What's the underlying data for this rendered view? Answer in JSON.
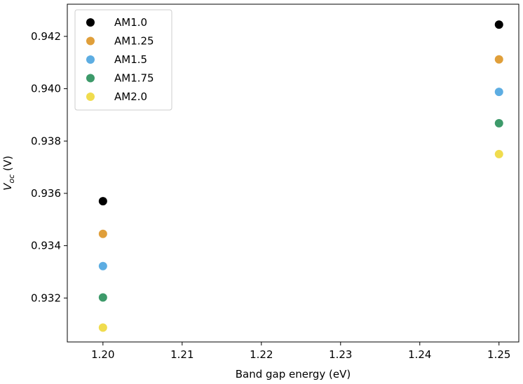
{
  "chart_data": {
    "type": "scatter",
    "xlabel": "Band gap energy (eV)",
    "ylabel": {
      "main": "V",
      "subscript": "oc",
      "unit": " (V)"
    },
    "xlim": [
      1.1955,
      1.2525
    ],
    "ylim": [
      0.93032,
      0.94323
    ],
    "xticks": [
      1.2,
      1.21,
      1.22,
      1.23,
      1.24,
      1.25
    ],
    "xtick_labels": [
      "1.20",
      "1.21",
      "1.22",
      "1.23",
      "1.24",
      "1.25"
    ],
    "yticks": [
      0.932,
      0.934,
      0.936,
      0.938,
      0.94,
      0.942
    ],
    "ytick_labels": [
      "0.932",
      "0.934",
      "0.936",
      "0.938",
      "0.940",
      "0.942"
    ],
    "grid": false,
    "legend_position": "top-left",
    "series": [
      {
        "name": "AM1.0",
        "color": "#000000",
        "x": [
          1.2,
          1.25
        ],
        "y": [
          0.9357,
          0.94245
        ]
      },
      {
        "name": "AM1.25",
        "color": "#E09F3A",
        "x": [
          1.2,
          1.25
        ],
        "y": [
          0.93445,
          0.94112
        ]
      },
      {
        "name": "AM1.5",
        "color": "#5DADE2",
        "x": [
          1.2,
          1.25
        ],
        "y": [
          0.93322,
          0.93988
        ]
      },
      {
        "name": "AM1.75",
        "color": "#3D9A6A",
        "x": [
          1.2,
          1.25
        ],
        "y": [
          0.93202,
          0.93868
        ]
      },
      {
        "name": "AM2.0",
        "color": "#F0DC4E",
        "x": [
          1.2,
          1.25
        ],
        "y": [
          0.93087,
          0.9375
        ]
      }
    ]
  }
}
